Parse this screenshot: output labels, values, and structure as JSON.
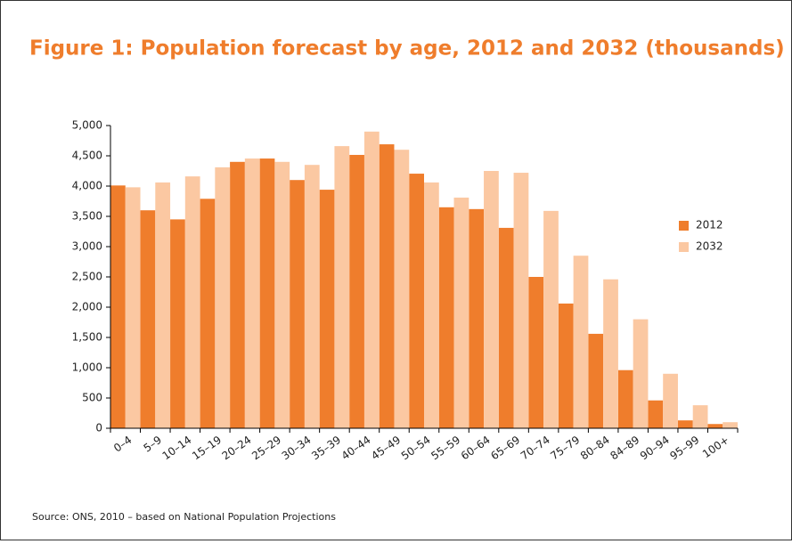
{
  "chart_data": {
    "type": "bar",
    "title": "Figure 1: Population forecast by age, 2012 and 2032 (thousands)",
    "source": "Source: ONS, 2010 – based on National Population Projections",
    "categories": [
      "0–4",
      "5–9",
      "10–14",
      "15–19",
      "20–24",
      "25–29",
      "30–34",
      "35–39",
      "40–44",
      "45–49",
      "50–54",
      "55–59",
      "60–64",
      "65–69",
      "70–74",
      "75–79",
      "80–84",
      "84–89",
      "90–94",
      "95–99",
      "100+"
    ],
    "series": [
      {
        "name": "2012",
        "color": "#ef7d2c",
        "values": [
          4010,
          3600,
          3450,
          3790,
          4400,
          4455,
          4100,
          3940,
          4515,
          4690,
          4205,
          3650,
          3620,
          3310,
          2500,
          2060,
          1560,
          960,
          460,
          130,
          70
        ]
      },
      {
        "name": "2032",
        "color": "#fbc8a2",
        "values": [
          3980,
          4060,
          4160,
          4310,
          4455,
          4400,
          4350,
          4660,
          4900,
          4600,
          4060,
          3810,
          4250,
          4220,
          3590,
          2850,
          2460,
          1800,
          900,
          380,
          100
        ]
      }
    ],
    "ylim": [
      0,
      5000
    ],
    "yticks": [
      0,
      500,
      {
        "value": 1000,
        "label": "1,000"
      },
      {
        "value": 1500,
        "label": "1,500"
      },
      {
        "value": 2000,
        "label": "2,000"
      },
      {
        "value": 2500,
        "label": "2,500"
      },
      {
        "value": 3000,
        "label": "3,000"
      },
      {
        "value": 3500,
        "label": "3,500"
      },
      {
        "value": 4000,
        "label": "4,000"
      },
      {
        "value": 4500,
        "label": "4,500"
      },
      {
        "value": 5000,
        "label": "5,000"
      }
    ],
    "legend": "right"
  }
}
